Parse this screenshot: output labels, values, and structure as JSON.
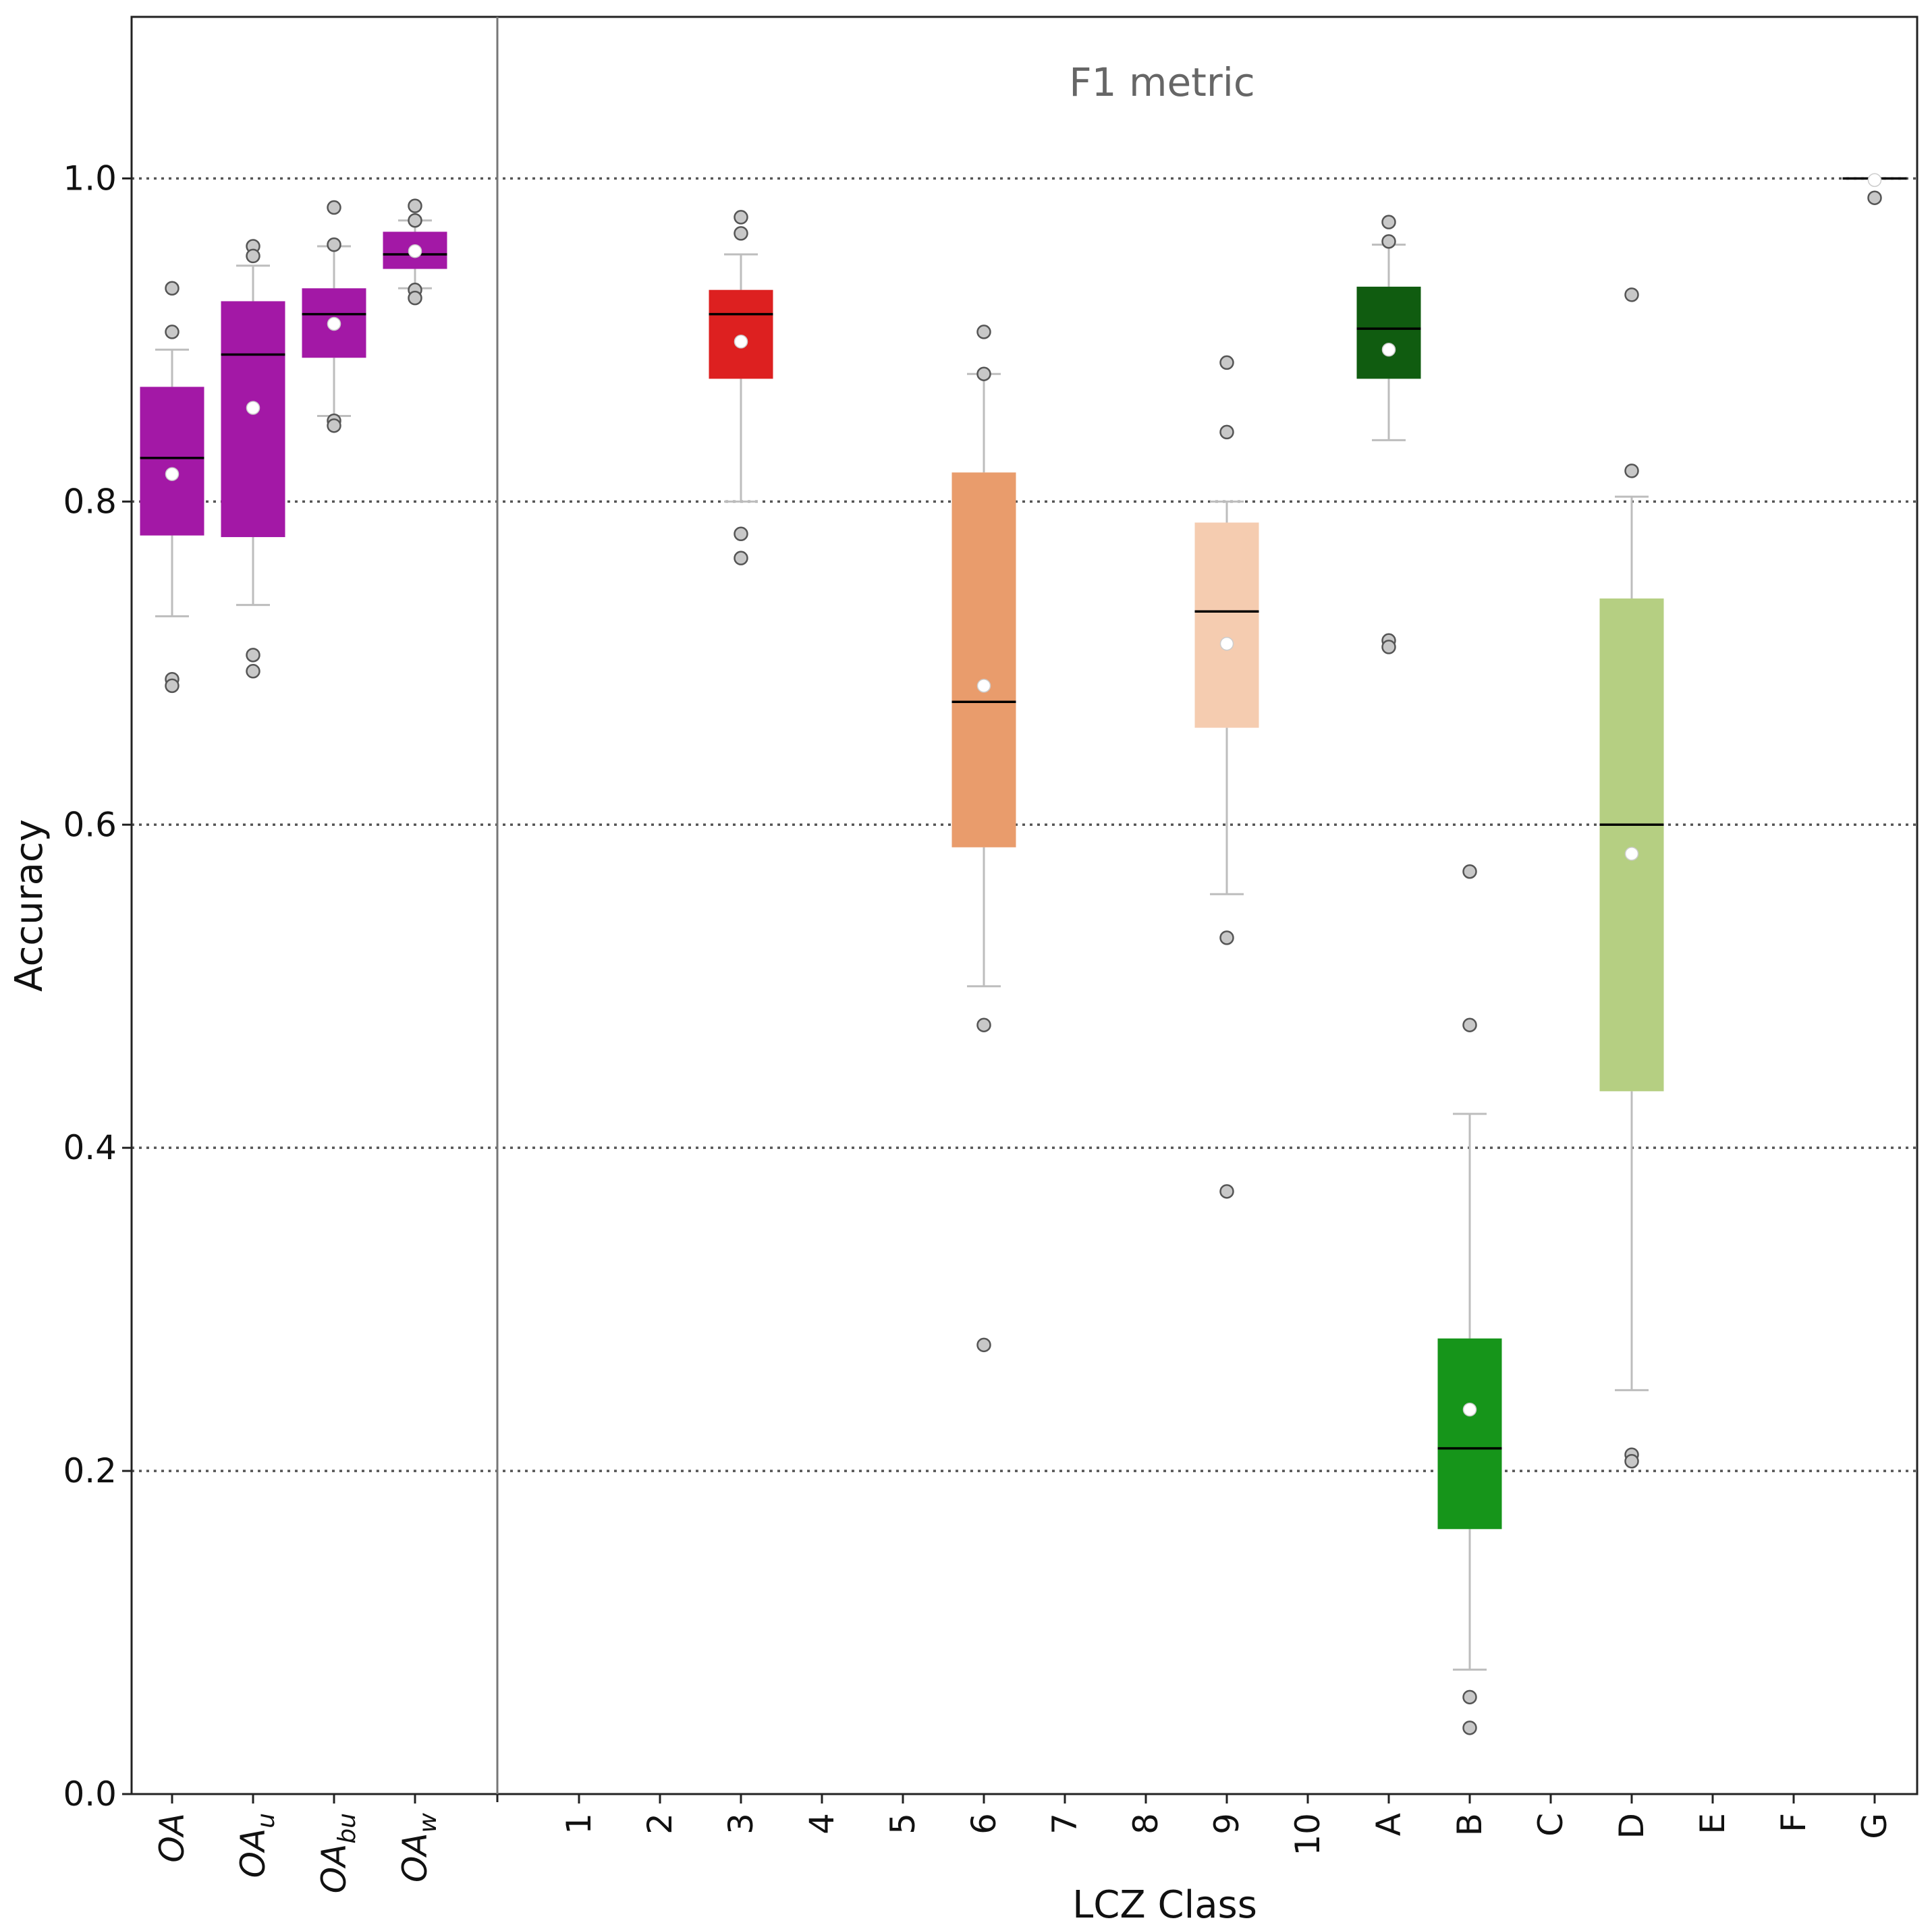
{
  "chart_data": {
    "type": "box",
    "title": "",
    "annotation": "F1 metric",
    "ylabel": "Accuracy",
    "xlabel": "LCZ Class",
    "ylim": [
      0.0,
      1.1
    ],
    "yticks": [
      0.0,
      0.2,
      0.4,
      0.6,
      0.8,
      1.0
    ],
    "ytick_labels": [
      "0.0",
      "0.2",
      "0.4",
      "0.6",
      "0.8",
      "1.0"
    ],
    "grid": "dotted horizontal at y ticks",
    "left_group": {
      "categories": [
        {
          "base": "OA",
          "sub": ""
        },
        {
          "base": "OA",
          "sub": "u"
        },
        {
          "base": "OA",
          "sub": "bu"
        },
        {
          "base": "OA",
          "sub": "w"
        }
      ]
    },
    "right_group": {
      "categories": [
        "1",
        "2",
        "3",
        "4",
        "5",
        "6",
        "7",
        "8",
        "9",
        "10",
        "A",
        "B",
        "C",
        "D",
        "E",
        "F",
        "G"
      ]
    },
    "boxes": [
      {
        "group": "left",
        "index": 0,
        "color": "#a318a6",
        "q1": 0.779,
        "median": 0.827,
        "q3": 0.871,
        "mean": 0.817,
        "whisker_low": 0.729,
        "whisker_high": 0.894,
        "outliers": [
          0.932,
          0.905,
          0.69,
          0.686
        ]
      },
      {
        "group": "left",
        "index": 1,
        "color": "#a318a6",
        "q1": 0.778,
        "median": 0.891,
        "q3": 0.924,
        "mean": 0.858,
        "whisker_low": 0.736,
        "whisker_high": 0.946,
        "outliers": [
          0.958,
          0.952,
          0.705,
          0.695
        ]
      },
      {
        "group": "left",
        "index": 2,
        "color": "#a318a6",
        "q1": 0.889,
        "median": 0.916,
        "q3": 0.932,
        "mean": 0.91,
        "whisker_low": 0.853,
        "whisker_high": 0.958,
        "outliers": [
          0.982,
          0.959,
          0.85,
          0.847
        ]
      },
      {
        "group": "left",
        "index": 3,
        "color": "#a318a6",
        "q1": 0.944,
        "median": 0.953,
        "q3": 0.967,
        "mean": 0.955,
        "whisker_low": 0.932,
        "whisker_high": 0.974,
        "outliers": [
          0.983,
          0.974,
          0.931,
          0.926
        ]
      },
      {
        "group": "right",
        "index": 2,
        "color": "#dd2020",
        "q1": 0.876,
        "median": 0.916,
        "q3": 0.931,
        "mean": 0.899,
        "whisker_low": 0.8,
        "whisker_high": 0.953,
        "outliers": [
          0.976,
          0.966,
          0.78,
          0.765
        ]
      },
      {
        "group": "right",
        "index": 5,
        "color": "#e99c6c",
        "q1": 0.586,
        "median": 0.676,
        "q3": 0.818,
        "mean": 0.686,
        "whisker_low": 0.5,
        "whisker_high": 0.879,
        "outliers": [
          0.905,
          0.879,
          0.476,
          0.278
        ]
      },
      {
        "group": "right",
        "index": 8,
        "color": "#f5ccb0",
        "q1": 0.66,
        "median": 0.732,
        "q3": 0.787,
        "mean": 0.712,
        "whisker_low": 0.557,
        "whisker_high": 0.8,
        "outliers": [
          0.886,
          0.843,
          0.53,
          0.373
        ]
      },
      {
        "group": "right",
        "index": 10,
        "color": "#105c10",
        "q1": 0.876,
        "median": 0.907,
        "q3": 0.933,
        "mean": 0.894,
        "whisker_low": 0.838,
        "whisker_high": 0.959,
        "outliers": [
          0.973,
          0.961,
          0.714,
          0.71
        ]
      },
      {
        "group": "right",
        "index": 11,
        "color": "#16951a",
        "q1": 0.164,
        "median": 0.214,
        "q3": 0.282,
        "mean": 0.238,
        "whisker_low": 0.077,
        "whisker_high": 0.421,
        "outliers": [
          0.571,
          0.476,
          0.06,
          0.041
        ]
      },
      {
        "group": "right",
        "index": 13,
        "color": "#b5cf82",
        "q1": 0.435,
        "median": 0.6,
        "q3": 0.74,
        "mean": 0.582,
        "whisker_low": 0.25,
        "whisker_high": 0.803,
        "outliers": [
          0.928,
          0.819,
          0.21,
          0.206
        ]
      },
      {
        "group": "right",
        "index": 16,
        "color": "#b5cf82",
        "q1": 1.0,
        "median": 1.0,
        "q3": 1.0,
        "mean": 0.999,
        "whisker_low": 1.0,
        "whisker_high": 1.0,
        "outliers": [
          0.988
        ]
      }
    ]
  }
}
